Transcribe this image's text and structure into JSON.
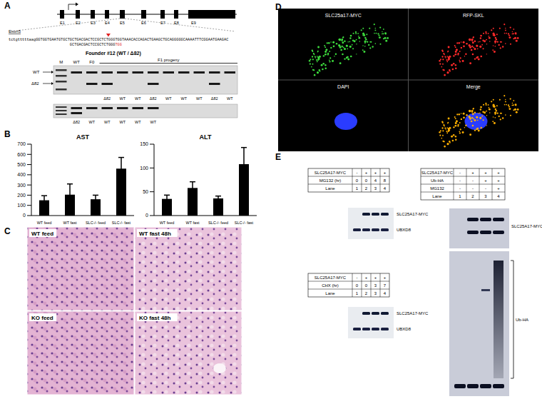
{
  "panel_labels": [
    "A",
    "B",
    "C",
    "D",
    "E"
  ],
  "panel_a": {
    "exons": [
      "E1",
      "E2",
      "E3",
      "E4",
      "E5",
      "E6",
      "E7",
      "E8",
      "E9"
    ],
    "exon_title": "Exon5",
    "sequence": "tctgtttttaagGGTGGTGAATGTGCTGCTGACGACTCCGCTCTGGGTGGTAAACACCAGACTGAAGCTGCAGGGGGCAAAATTTCGGAATGAAGAC",
    "guide": "GCTGACGACTCCGCTCTGGG",
    "pam": "TGG",
    "founder": "Founder #12 (WT / Δ82)",
    "side_labels": [
      "WT",
      "Δ82"
    ],
    "gel_lanes": [
      "M",
      "WT",
      "F0"
    ],
    "progeny_label": "F1 progeny",
    "gel1_genotypes": [
      "Δ82",
      "WT",
      "WT",
      "Δ82",
      "WT",
      "WT",
      "WT",
      "Δ82",
      "WT"
    ],
    "gel2_genotypes": [
      "Δ82",
      "WT",
      "WT",
      "WT",
      "WT",
      "WT"
    ]
  },
  "chart_data": [
    {
      "type": "bar",
      "title": "AST",
      "categories": [
        "WT feed",
        "WT fast",
        "SLC-/- feed",
        "SLC-/- fast"
      ],
      "values": [
        150,
        205,
        160,
        460
      ],
      "errors": [
        45,
        105,
        40,
        110
      ],
      "color": "#000000",
      "ylim": [
        0,
        700
      ],
      "yticks": [
        0,
        100,
        200,
        300,
        400,
        500,
        600,
        700
      ]
    },
    {
      "type": "bar",
      "title": "ALT",
      "categories": [
        "WT feed",
        "WT fast",
        "SLC-/- feed",
        "SLC-/- fast"
      ],
      "values": [
        35,
        58,
        36,
        108
      ],
      "errors": [
        8,
        13,
        5,
        35
      ],
      "color": "#000000",
      "ylim": [
        0,
        150
      ],
      "yticks": [
        0,
        50,
        100,
        150
      ]
    }
  ],
  "panel_c": {
    "images": [
      "WT feed",
      "WT fast 48h",
      "KO feed",
      "KO fast 48h"
    ]
  },
  "panel_d": {
    "images": [
      {
        "label": "SLC25a17-MYC",
        "color": "#3ddc3d"
      },
      {
        "label": "RFP-SKL",
        "color": "#ff2a2a"
      },
      {
        "label": "DAPI",
        "color": "#2a3cff"
      },
      {
        "label": "Merge",
        "color": "#ffb000"
      }
    ]
  },
  "panel_e": {
    "blots": [
      {
        "rows": [
          [
            "SLC25A17-MYC",
            "-",
            "+",
            "+",
            "+"
          ],
          [
            "MG132 (hr)",
            "0",
            "0",
            "4",
            "8"
          ],
          [
            "Lane",
            "1",
            "2",
            "3",
            "4"
          ]
        ],
        "bands": [
          "SLC25A17-MYC",
          "UBXD8"
        ]
      },
      {
        "rows": [
          [
            "SLC25A17-MYC",
            "-",
            "+",
            "+",
            "+"
          ],
          [
            "CHX (hr)",
            "0",
            "0",
            "3",
            "7"
          ],
          [
            "Lane",
            "1",
            "2",
            "3",
            "4"
          ]
        ],
        "bands": [
          "SLC25A17-MYC",
          "UBXD8"
        ]
      },
      {
        "rows": [
          [
            "SLC25A17-MYC",
            "-",
            "+",
            "+",
            "+"
          ],
          [
            "Ub-HA",
            "-",
            "-",
            "+",
            "+"
          ],
          [
            "MG132",
            "-",
            "-",
            "-",
            "+"
          ],
          [
            "Lane",
            "1",
            "2",
            "3",
            "4"
          ]
        ],
        "bands": [
          "SLC25A17-MYC",
          "Ub-HA"
        ]
      }
    ]
  }
}
